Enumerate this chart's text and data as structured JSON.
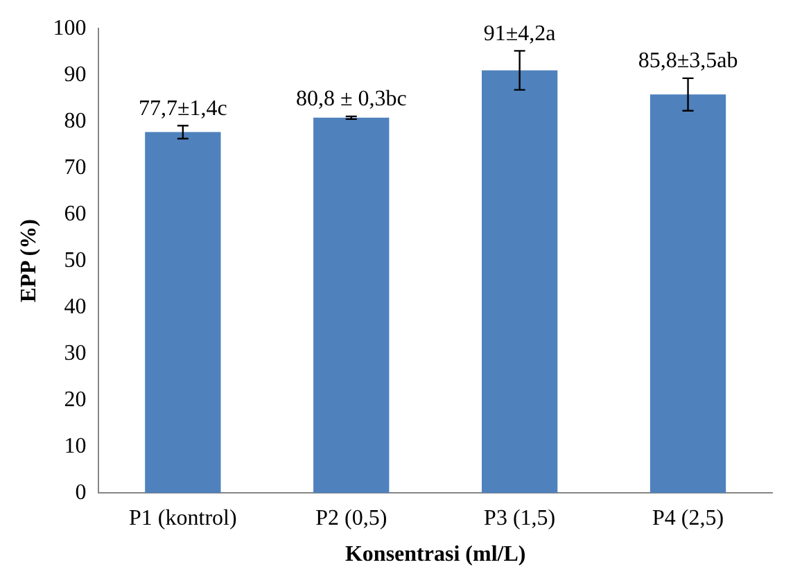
{
  "chart_data": {
    "type": "bar",
    "xlabel": "Konsentrasi (ml/L)",
    "ylabel": "EPP (%)",
    "categories": [
      "P1 (kontrol)",
      "P2 (0,5)",
      "P3 (1,5)",
      "P4 (2,5)"
    ],
    "values": [
      77.7,
      80.8,
      91,
      85.8
    ],
    "errors": [
      1.4,
      0.3,
      4.2,
      3.5
    ],
    "value_labels": [
      "77,7±1,4c",
      "80,8 ± 0,3bc",
      "91±4,2a",
      "85,8±3,5ab"
    ],
    "color": "#4f81bd",
    "ylim": [
      0,
      100
    ],
    "yticks": [
      0,
      10,
      20,
      30,
      40,
      50,
      60,
      70,
      80,
      90,
      100
    ],
    "grid": false,
    "legend": false
  }
}
